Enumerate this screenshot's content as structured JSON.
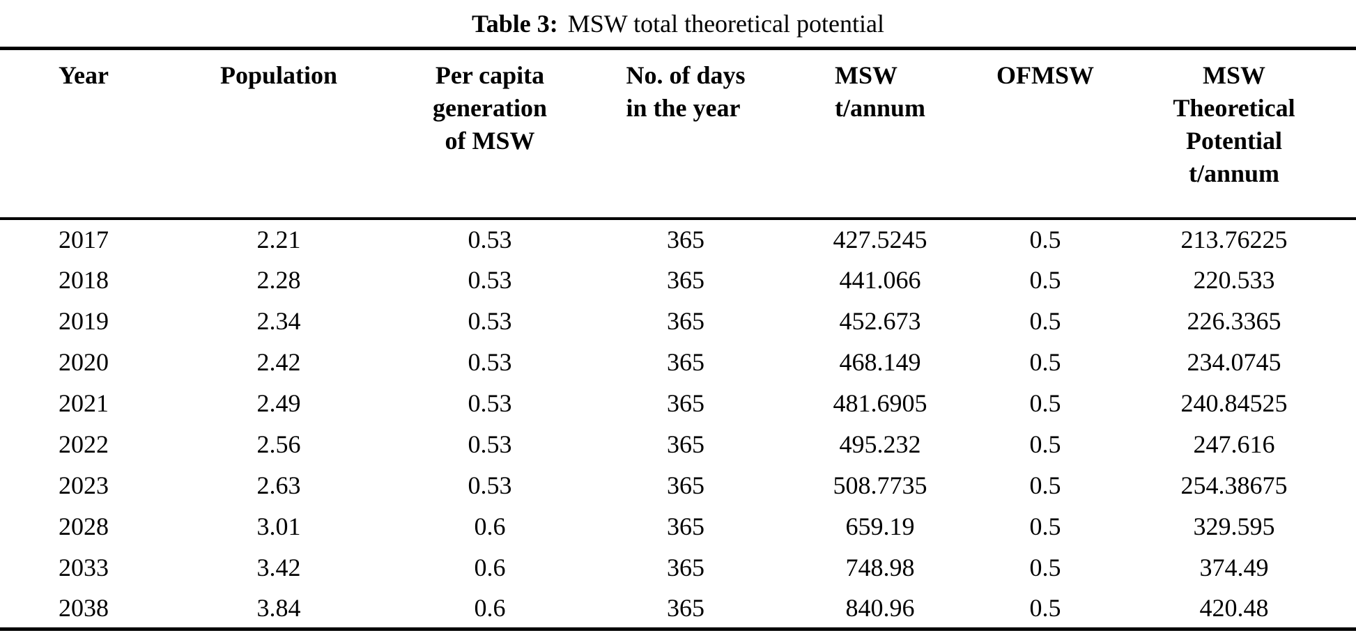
{
  "caption": {
    "label": "Table 3:",
    "title": "MSW total theoretical potential"
  },
  "table": {
    "columns": [
      {
        "id": "year",
        "label": "Year",
        "lines": [
          "Year"
        ]
      },
      {
        "id": "population",
        "label": "Population",
        "lines": [
          "Population"
        ]
      },
      {
        "id": "per-capita-generation-of-msw",
        "label": "Per capita generation of MSW",
        "lines": [
          "Per capita",
          "generation",
          "of MSW"
        ]
      },
      {
        "id": "no-of-days-in-the-year",
        "label": "No. of days in the year",
        "lines": [
          "No. of days",
          "in the year"
        ]
      },
      {
        "id": "msw-t-annum",
        "label": "MSW t/annum",
        "lines": [
          "MSW",
          "t/annum"
        ]
      },
      {
        "id": "ofmsw",
        "label": "OFMSW",
        "lines": [
          "OFMSW"
        ]
      },
      {
        "id": "msw-theoretical-potential-t-annum",
        "label": "MSW Theoretical Potential t/annum",
        "lines": [
          "MSW",
          "Theoretical",
          "Potential",
          "t/annum"
        ]
      }
    ],
    "rows": [
      [
        "2017",
        "2.21",
        "0.53",
        "365",
        "427.5245",
        "0.5",
        "213.76225"
      ],
      [
        "2018",
        "2.28",
        "0.53",
        "365",
        "441.066",
        "0.5",
        "220.533"
      ],
      [
        "2019",
        "2.34",
        "0.53",
        "365",
        "452.673",
        "0.5",
        "226.3365"
      ],
      [
        "2020",
        "2.42",
        "0.53",
        "365",
        "468.149",
        "0.5",
        "234.0745"
      ],
      [
        "2021",
        "2.49",
        "0.53",
        "365",
        "481.6905",
        "0.5",
        "240.84525"
      ],
      [
        "2022",
        "2.56",
        "0.53",
        "365",
        "495.232",
        "0.5",
        "247.616"
      ],
      [
        "2023",
        "2.63",
        "0.53",
        "365",
        "508.7735",
        "0.5",
        "254.38675"
      ],
      [
        "2028",
        "3.01",
        "0.6",
        "365",
        "659.19",
        "0.5",
        "329.595"
      ],
      [
        "2033",
        "3.42",
        "0.6",
        "365",
        "748.98",
        "0.5",
        "374.49"
      ],
      [
        "2038",
        "3.84",
        "0.6",
        "365",
        "840.96",
        "0.5",
        "420.48"
      ]
    ]
  },
  "colors": {
    "background": "#ffffff",
    "text": "#000000",
    "rule": "#000000"
  }
}
